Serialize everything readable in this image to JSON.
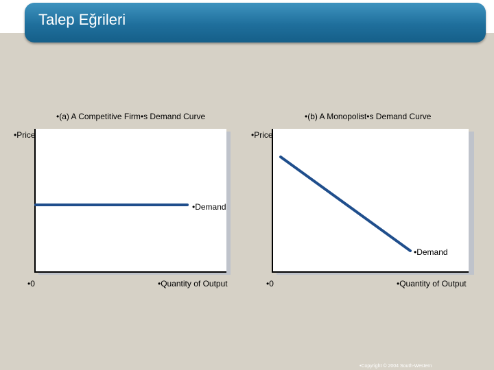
{
  "title": "Talep Eğrileri",
  "panels": {
    "a": {
      "title": "•(a) A Competitive Firm•s Demand Curve",
      "ylabel": "•Price",
      "xlabel": "•Quantity of Output",
      "origin": "•0",
      "curve_label": "•Demand"
    },
    "b": {
      "title": "•(b) A Monopolist•s Demand Curve",
      "ylabel": "•Price",
      "xlabel": "•Quantity of Output",
      "origin": "•0",
      "curve_label": "•Demand"
    }
  },
  "colors": {
    "curve": "#1f4e8c",
    "title_bar": "#1f6f9c",
    "background": "#d6d1c6"
  },
  "footer": {
    "copyright": "•Copyright © 2004 South-Western"
  }
}
